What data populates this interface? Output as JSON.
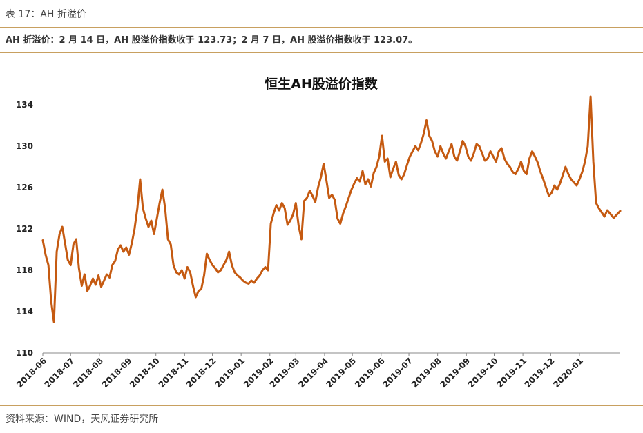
{
  "header": {
    "table_label": "表 17：AH 折溢价",
    "summary": "AH 折溢价：2 月 14 日，AH 股溢价指数收于 123.73；2 月 7 日，AH 股溢价指数收于 123.07。"
  },
  "footer": {
    "source": "资料来源：WIND，天风证券研究所"
  },
  "chart_data": {
    "type": "line",
    "title": "恒生AH股溢价指数",
    "xlabel": "",
    "ylabel": "",
    "ylim": [
      110,
      134
    ],
    "yticks": [
      110,
      114,
      118,
      122,
      126,
      130,
      134
    ],
    "xticks": [
      "2018-06",
      "2018-07",
      "2018-08",
      "2018-09",
      "2018-10",
      "2018-11",
      "2018-12",
      "2019-01",
      "2019-02",
      "2019-03",
      "2019-04",
      "2019-05",
      "2019-06",
      "2019-07",
      "2019-08",
      "2019-09",
      "2019-10",
      "2019-11",
      "2019-12",
      "2020-01"
    ],
    "grid": false,
    "legend": "none",
    "line_color": "#C55A11",
    "series": [
      {
        "x": [
          "2018-06-01",
          "2018-06-04",
          "2018-06-07",
          "2018-06-10",
          "2018-06-13",
          "2018-06-16",
          "2018-06-19",
          "2018-06-22",
          "2018-06-25",
          "2018-06-28",
          "2018-07-01",
          "2018-07-04",
          "2018-07-07",
          "2018-07-10",
          "2018-07-13",
          "2018-07-16",
          "2018-07-19",
          "2018-07-22",
          "2018-07-25",
          "2018-07-28",
          "2018-07-31",
          "2018-08-03",
          "2018-08-06",
          "2018-08-09",
          "2018-08-12",
          "2018-08-15",
          "2018-08-18",
          "2018-08-21",
          "2018-08-24",
          "2018-08-27",
          "2018-08-30",
          "2018-09-02",
          "2018-09-05",
          "2018-09-08",
          "2018-09-11",
          "2018-09-14",
          "2018-09-17",
          "2018-09-20",
          "2018-09-23",
          "2018-09-26",
          "2018-09-29",
          "2018-10-02",
          "2018-10-05",
          "2018-10-08",
          "2018-10-11",
          "2018-10-14",
          "2018-10-17",
          "2018-10-20",
          "2018-10-23",
          "2018-10-26",
          "2018-10-29",
          "2018-11-01",
          "2018-11-04",
          "2018-11-07",
          "2018-11-10",
          "2018-11-13",
          "2018-11-16",
          "2018-11-19",
          "2018-11-22",
          "2018-11-25",
          "2018-11-28",
          "2018-12-01",
          "2018-12-04",
          "2018-12-07",
          "2018-12-10",
          "2018-12-13",
          "2018-12-16",
          "2018-12-19",
          "2018-12-22",
          "2018-12-25",
          "2018-12-28",
          "2018-12-31",
          "2019-01-03",
          "2019-01-06",
          "2019-01-09",
          "2019-01-12",
          "2019-01-15",
          "2019-01-18",
          "2019-01-21",
          "2019-01-24",
          "2019-01-27",
          "2019-01-30",
          "2019-02-02",
          "2019-02-05",
          "2019-02-08",
          "2019-02-11",
          "2019-02-14",
          "2019-02-17",
          "2019-02-20",
          "2019-02-23",
          "2019-02-26",
          "2019-03-01",
          "2019-03-04",
          "2019-03-07",
          "2019-03-10",
          "2019-03-13",
          "2019-03-16",
          "2019-03-19",
          "2019-03-22",
          "2019-03-25",
          "2019-03-28",
          "2019-03-31",
          "2019-04-03",
          "2019-04-06",
          "2019-04-09",
          "2019-04-12",
          "2019-04-15",
          "2019-04-18",
          "2019-04-21",
          "2019-04-24",
          "2019-04-27",
          "2019-04-30",
          "2019-05-03",
          "2019-05-06",
          "2019-05-09",
          "2019-05-12",
          "2019-05-15",
          "2019-05-18",
          "2019-05-21",
          "2019-05-24",
          "2019-05-27",
          "2019-05-30",
          "2019-06-02",
          "2019-06-05",
          "2019-06-08",
          "2019-06-11",
          "2019-06-14",
          "2019-06-17",
          "2019-06-20",
          "2019-06-23",
          "2019-06-26",
          "2019-06-29",
          "2019-07-02",
          "2019-07-05",
          "2019-07-08",
          "2019-07-11",
          "2019-07-14",
          "2019-07-17",
          "2019-07-20",
          "2019-07-23",
          "2019-07-26",
          "2019-07-29",
          "2019-08-01",
          "2019-08-04",
          "2019-08-07",
          "2019-08-10",
          "2019-08-13",
          "2019-08-16",
          "2019-08-19",
          "2019-08-22",
          "2019-08-25",
          "2019-08-28",
          "2019-08-31",
          "2019-09-03",
          "2019-09-06",
          "2019-09-09",
          "2019-09-12",
          "2019-09-15",
          "2019-09-18",
          "2019-09-21",
          "2019-09-24",
          "2019-09-27",
          "2019-09-30",
          "2019-10-03",
          "2019-10-06",
          "2019-10-09",
          "2019-10-12",
          "2019-10-15",
          "2019-10-18",
          "2019-10-21",
          "2019-10-24",
          "2019-10-27",
          "2019-10-30",
          "2019-11-02",
          "2019-11-05",
          "2019-11-08",
          "2019-11-11",
          "2019-11-14",
          "2019-11-17",
          "2019-11-20",
          "2019-11-23",
          "2019-11-26",
          "2019-11-29",
          "2019-12-02",
          "2019-12-05",
          "2019-12-08",
          "2019-12-11",
          "2019-12-14",
          "2019-12-17",
          "2019-12-20",
          "2019-12-23",
          "2019-12-26",
          "2019-12-29",
          "2020-01-01",
          "2020-01-04",
          "2020-01-07",
          "2020-01-10",
          "2020-01-13",
          "2020-01-16",
          "2020-01-19",
          "2020-01-22",
          "2020-01-25",
          "2020-01-28",
          "2020-01-31",
          "2020-02-03",
          "2020-02-07",
          "2020-02-14"
        ],
        "y": [
          120.9,
          119.5,
          118.5,
          115.0,
          113.0,
          119.8,
          121.5,
          122.2,
          120.6,
          119.0,
          118.5,
          120.5,
          121.0,
          118.2,
          116.5,
          117.6,
          116.0,
          116.5,
          117.2,
          116.6,
          117.5,
          116.4,
          117.0,
          117.6,
          117.3,
          118.5,
          118.9,
          120.0,
          120.4,
          119.8,
          120.2,
          119.5,
          120.6,
          122.0,
          124.0,
          126.8,
          124.0,
          123.0,
          122.2,
          122.8,
          121.5,
          123.0,
          124.5,
          125.8,
          124.0,
          121.0,
          120.5,
          118.5,
          117.8,
          117.6,
          118.0,
          117.2,
          118.3,
          117.8,
          116.5,
          115.4,
          116.0,
          116.2,
          117.5,
          119.6,
          119.0,
          118.5,
          118.2,
          117.8,
          118.0,
          118.5,
          119.0,
          119.8,
          118.5,
          117.8,
          117.5,
          117.3,
          117.0,
          116.8,
          116.7,
          117.0,
          116.8,
          117.2,
          117.5,
          118.0,
          118.3,
          118.0,
          122.5,
          123.5,
          124.3,
          123.8,
          124.5,
          124.0,
          122.4,
          122.8,
          123.4,
          124.5,
          122.3,
          121.0,
          124.7,
          125.0,
          125.7,
          125.2,
          124.6,
          126.0,
          127.0,
          128.3,
          126.7,
          125.0,
          125.3,
          124.8,
          123.0,
          122.5,
          123.5,
          124.2,
          125.0,
          125.8,
          126.4,
          126.9,
          126.6,
          127.6,
          126.3,
          126.8,
          126.1,
          127.4,
          128.0,
          129.0,
          131.0,
          128.5,
          128.8,
          127.0,
          127.8,
          128.5,
          127.2,
          126.8,
          127.3,
          128.2,
          129.0,
          129.5,
          130.0,
          129.6,
          130.3,
          131.2,
          132.5,
          131.0,
          130.5,
          129.5,
          129.0,
          130.0,
          129.3,
          128.8,
          129.5,
          130.2,
          129.0,
          128.6,
          129.5,
          130.5,
          130.0,
          129.0,
          128.6,
          129.3,
          130.2,
          130.0,
          129.3,
          128.6,
          128.8,
          129.5,
          129.0,
          128.5,
          129.5,
          129.8,
          128.8,
          128.3,
          128.0,
          127.5,
          127.3,
          127.8,
          128.5,
          127.6,
          127.3,
          128.8,
          129.5,
          129.0,
          128.4,
          127.5,
          126.8,
          126.0,
          125.2,
          125.5,
          126.2,
          125.8,
          126.4,
          127.2,
          128.0,
          127.3,
          126.8,
          126.5,
          126.2,
          126.8,
          127.5,
          128.5,
          130.0,
          134.8,
          128.5,
          124.5,
          124.0,
          123.6,
          123.2,
          123.8,
          123.5,
          123.07,
          123.73
        ]
      }
    ]
  }
}
